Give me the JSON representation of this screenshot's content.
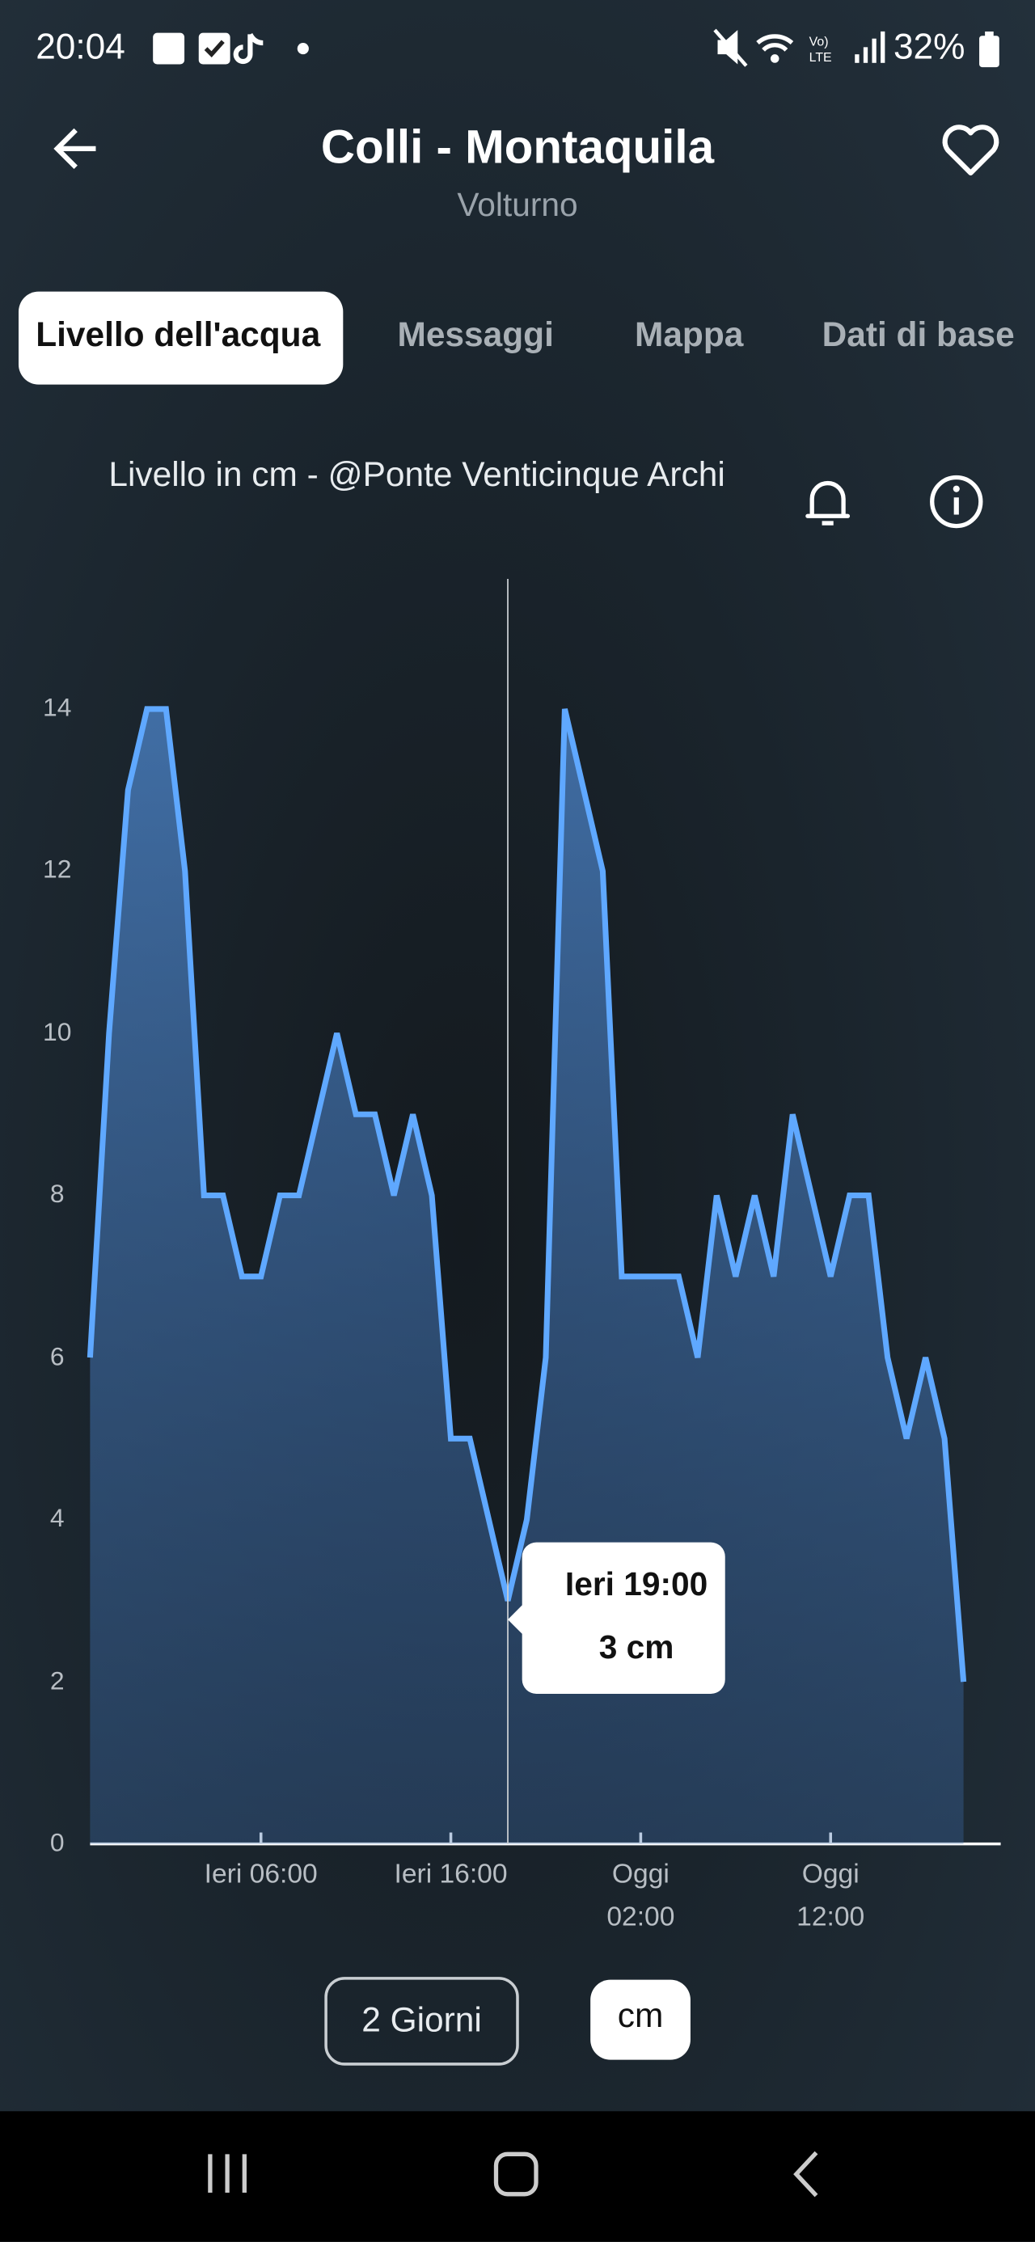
{
  "status_bar": {
    "time": "20:04",
    "battery": "32%"
  },
  "header": {
    "title": "Colli - Montaquila",
    "subtitle": "Volturno"
  },
  "tabs": [
    "Livello dell'acqua",
    "Messaggi",
    "Mappa",
    "Dati di base"
  ],
  "chart_data": {
    "type": "line",
    "title": "Livello in cm - @Ponte Venticinque Archi",
    "categories": [
      null,
      null,
      null,
      null,
      null,
      null,
      null,
      null,
      null,
      null,
      null,
      null,
      null,
      null,
      null,
      null,
      null,
      null,
      null,
      null,
      null,
      null,
      "Ieri 19:00",
      null,
      null,
      null,
      null,
      null,
      null,
      null,
      null,
      null,
      null,
      null,
      null,
      null,
      null,
      null,
      null,
      null,
      null,
      null,
      null,
      null,
      null,
      null,
      null
    ],
    "series": [
      {
        "color": "#5fa8ff",
        "values": [
          6,
          10,
          13,
          14,
          14,
          12,
          8,
          8,
          7,
          7,
          8,
          8,
          9,
          10,
          9,
          9,
          8,
          9,
          8,
          5,
          5,
          4,
          3,
          4,
          6,
          14,
          13,
          12,
          7,
          7,
          7,
          7,
          6,
          8,
          7,
          8,
          7,
          9,
          8,
          7,
          8,
          8,
          6,
          5,
          6,
          5,
          2
        ]
      }
    ],
    "xticks": [
      {
        "value": 9,
        "label": "Ieri 06:00"
      },
      {
        "value": 19,
        "label": "Ieri 16:00"
      },
      {
        "value": 29,
        "label": "Oggi 02:00"
      },
      {
        "value": 39,
        "label": "Oggi 12:00"
      }
    ],
    "ylim": [
      0,
      14
    ],
    "yticks": [
      0,
      2,
      4,
      6,
      8,
      10,
      12,
      14
    ],
    "tooltip": {
      "value_label": "3 cm"
    }
  },
  "buttons": {
    "range": "2 Giorni",
    "unit": "cm"
  }
}
